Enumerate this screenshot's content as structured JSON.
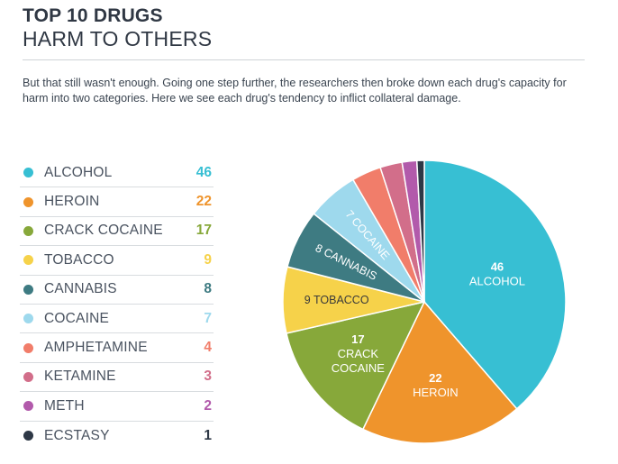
{
  "header": {
    "title": "TOP 10 DRUGS",
    "subtitle": "HARM TO OTHERS",
    "description": "But that still wasn't enough. Going one step further, the researchers then broke down each drug's capacity for harm into two categories. Here we see each drug's tendency to inflict collateral damage."
  },
  "legend": [
    {
      "name": "ALCOHOL",
      "value": "46"
    },
    {
      "name": "HEROIN",
      "value": "22"
    },
    {
      "name": "CRACK COCAINE",
      "value": "17"
    },
    {
      "name": "TOBACCO",
      "value": "9"
    },
    {
      "name": "CANNABIS",
      "value": "8"
    },
    {
      "name": "COCAINE",
      "value": "7"
    },
    {
      "name": "AMPHETAMINE",
      "value": "4"
    },
    {
      "name": "KETAMINE",
      "value": "3"
    },
    {
      "name": "METH",
      "value": "2"
    },
    {
      "name": "ECSTASY",
      "value": "1"
    }
  ],
  "chart_data": {
    "type": "pie",
    "title": "TOP 10 DRUGS",
    "subtitle": "HARM TO OTHERS",
    "categories": [
      "ALCOHOL",
      "HEROIN",
      "CRACK COCAINE",
      "TOBACCO",
      "CANNABIS",
      "COCAINE",
      "AMPHETAMINE",
      "KETAMINE",
      "METH",
      "ECSTASY"
    ],
    "values": [
      46,
      22,
      17,
      9,
      8,
      7,
      4,
      3,
      2,
      1
    ],
    "colors": [
      "#37bfd3",
      "#ef942c",
      "#87a83a",
      "#f6d24a",
      "#3e7b82",
      "#9ed9ed",
      "#f17d6a",
      "#d26e8a",
      "#b25aab",
      "#2e3846"
    ],
    "slice_labels": [
      [
        "46",
        "ALCOHOL"
      ],
      [
        "22",
        "HEROIN"
      ],
      [
        "17",
        "CRACK",
        "COCAINE"
      ],
      [
        "9 TOBACCO"
      ],
      [
        "8 CANNABIS"
      ],
      [
        "7 COCAINE"
      ],
      [],
      [],
      [],
      []
    ],
    "legend_position": "left"
  }
}
